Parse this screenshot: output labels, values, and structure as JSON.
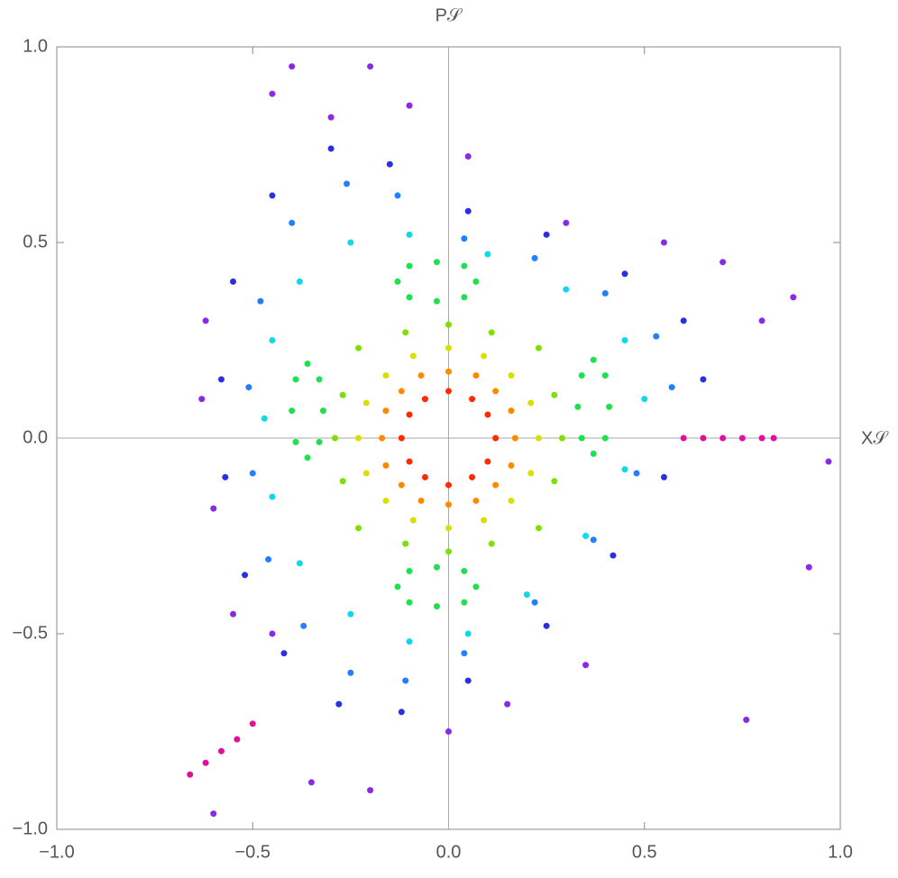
{
  "chart_data": {
    "type": "scatter",
    "x_label": "X𝒮",
    "y_label": "P𝒮",
    "xlim": [
      -1,
      1
    ],
    "ylim": [
      -1,
      1
    ],
    "xticks": [
      {
        "value": -1,
        "label": "−1.0"
      },
      {
        "value": -0.5,
        "label": "−0.5"
      },
      {
        "value": 0,
        "label": "0.0"
      },
      {
        "value": 0.5,
        "label": "0.5"
      },
      {
        "value": 1,
        "label": "1.0"
      }
    ],
    "yticks": [
      {
        "value": -1,
        "label": "−1.0"
      },
      {
        "value": -0.5,
        "label": "−0.5"
      },
      {
        "value": 0,
        "label": "0.0"
      },
      {
        "value": 0.5,
        "label": "0.5"
      },
      {
        "value": 1,
        "label": "1.0"
      }
    ],
    "zero_axes": true,
    "series": [
      {
        "color": "#ff2a00",
        "x": [
          0.12,
          0.1,
          0.06,
          0,
          -0.06,
          -0.1,
          -0.12,
          -0.1,
          -0.06,
          0,
          0.06,
          0.1
        ],
        "y": [
          0,
          0.06,
          0.1,
          0.12,
          0.1,
          0.06,
          0,
          -0.06,
          -0.1,
          -0.12,
          -0.1,
          -0.06
        ]
      },
      {
        "color": "#ff8a00",
        "x": [
          0.17,
          0.16,
          0.12,
          0.07,
          0,
          -0.07,
          -0.12,
          -0.16,
          -0.17,
          -0.16,
          -0.12,
          -0.07,
          0,
          0.07,
          0.12,
          0.16
        ],
        "y": [
          0,
          0.07,
          0.12,
          0.16,
          0.17,
          0.16,
          0.12,
          0.07,
          0,
          -0.07,
          -0.12,
          -0.16,
          -0.17,
          -0.16,
          -0.12,
          -0.07
        ]
      },
      {
        "color": "#d8e000",
        "x": [
          0.23,
          0.21,
          0.16,
          0.09,
          0,
          -0.09,
          -0.16,
          -0.21,
          -0.23,
          -0.21,
          -0.16,
          -0.09,
          0,
          0.09,
          0.16,
          0.21
        ],
        "y": [
          0,
          0.09,
          0.16,
          0.21,
          0.23,
          0.21,
          0.16,
          0.09,
          0,
          -0.09,
          -0.16,
          -0.21,
          -0.23,
          -0.21,
          -0.16,
          -0.09
        ]
      },
      {
        "color": "#7ce000",
        "x": [
          0.29,
          0.27,
          0.23,
          0.11,
          0,
          -0.11,
          -0.23,
          -0.27,
          -0.29,
          -0.27,
          -0.23,
          -0.11,
          0,
          0.11,
          0.23,
          0.27
        ],
        "y": [
          0,
          0.11,
          0.23,
          0.27,
          0.29,
          0.27,
          0.23,
          0.11,
          0,
          -0.11,
          -0.23,
          -0.27,
          -0.29,
          -0.27,
          -0.23,
          -0.11
        ]
      },
      {
        "color": "#20e050",
        "x": [
          0.07,
          0.04,
          -0.03,
          -0.1,
          -0.13,
          -0.1,
          -0.03,
          0.04,
          0.07,
          0.04,
          -0.03,
          -0.1,
          -0.13,
          -0.1,
          -0.03,
          0.04,
          -0.32,
          -0.33,
          -0.36,
          -0.39,
          -0.4,
          -0.39,
          -0.36,
          -0.33,
          0.41,
          0.4,
          0.37,
          0.34,
          0.33,
          0.34,
          0.37,
          0.4
        ],
        "y": [
          0.4,
          0.44,
          0.45,
          0.44,
          0.4,
          0.36,
          0.35,
          0.36,
          -0.38,
          -0.34,
          -0.33,
          -0.34,
          -0.38,
          -0.42,
          -0.43,
          -0.42,
          0.07,
          0.15,
          0.19,
          0.15,
          0.07,
          -0.01,
          -0.05,
          -0.01,
          0.08,
          0.16,
          0.2,
          0.16,
          0.08,
          0,
          -0.04,
          0
        ]
      },
      {
        "color": "#10d8e8",
        "x": [
          0.5,
          0.45,
          0.3,
          0.1,
          -0.1,
          -0.25,
          -0.38,
          -0.45,
          -0.47,
          -0.45,
          -0.38,
          -0.25,
          -0.1,
          0.05,
          0.2,
          0.35,
          0.45
        ],
        "y": [
          0.1,
          0.25,
          0.38,
          0.47,
          0.52,
          0.5,
          0.4,
          0.25,
          0.05,
          -0.15,
          -0.32,
          -0.45,
          -0.52,
          -0.5,
          -0.4,
          -0.25,
          -0.08
        ]
      },
      {
        "color": "#2080ff",
        "x": [
          0.57,
          0.53,
          0.4,
          0.22,
          0.04,
          -0.13,
          -0.26,
          -0.4,
          -0.48,
          -0.51,
          -0.5,
          -0.46,
          -0.37,
          -0.25,
          -0.11,
          0.04,
          0.22,
          0.37,
          0.48
        ],
        "y": [
          0.13,
          0.26,
          0.37,
          0.46,
          0.51,
          0.62,
          0.65,
          0.55,
          0.35,
          0.13,
          -0.09,
          -0.31,
          -0.48,
          -0.6,
          -0.62,
          -0.55,
          -0.42,
          -0.26,
          -0.09
        ]
      },
      {
        "color": "#2a30e0",
        "x": [
          0.65,
          0.6,
          0.45,
          0.25,
          0.05,
          -0.15,
          -0.3,
          -0.45,
          -0.55,
          -0.58,
          -0.57,
          -0.52,
          -0.42,
          -0.28,
          -0.12,
          0.05,
          0.25,
          0.42,
          0.55
        ],
        "y": [
          0.15,
          0.3,
          0.42,
          0.52,
          0.58,
          0.7,
          0.74,
          0.62,
          0.4,
          0.15,
          -0.1,
          -0.35,
          -0.55,
          -0.68,
          -0.7,
          -0.62,
          -0.48,
          -0.3,
          -0.1
        ]
      },
      {
        "color": "#8a2ae8",
        "x": [
          -0.45,
          -0.4,
          -0.3,
          -0.2,
          -0.1,
          0.05,
          0.3,
          0.55,
          0.7,
          0.8,
          0.88,
          -0.62,
          -0.63,
          -0.6,
          -0.55,
          -0.45,
          -0.35,
          -0.2,
          0,
          0.15,
          0.35,
          0.76,
          0.97,
          0.92,
          -0.6
        ],
        "y": [
          0.88,
          0.95,
          0.82,
          0.95,
          0.85,
          0.72,
          0.55,
          0.5,
          0.45,
          0.3,
          0.36,
          0.3,
          0.1,
          -0.18,
          -0.45,
          -0.5,
          -0.88,
          -0.9,
          -0.75,
          -0.68,
          -0.58,
          -0.72,
          -0.06,
          -0.33,
          -0.96
        ]
      },
      {
        "color": "#e0109a",
        "x": [
          0.6,
          0.65,
          0.7,
          0.75,
          0.8,
          0.83,
          -0.5,
          -0.54,
          -0.58,
          -0.62,
          -0.66
        ],
        "y": [
          0,
          0,
          0,
          0,
          0,
          0,
          -0.73,
          -0.77,
          -0.8,
          -0.83,
          -0.86
        ]
      }
    ]
  }
}
